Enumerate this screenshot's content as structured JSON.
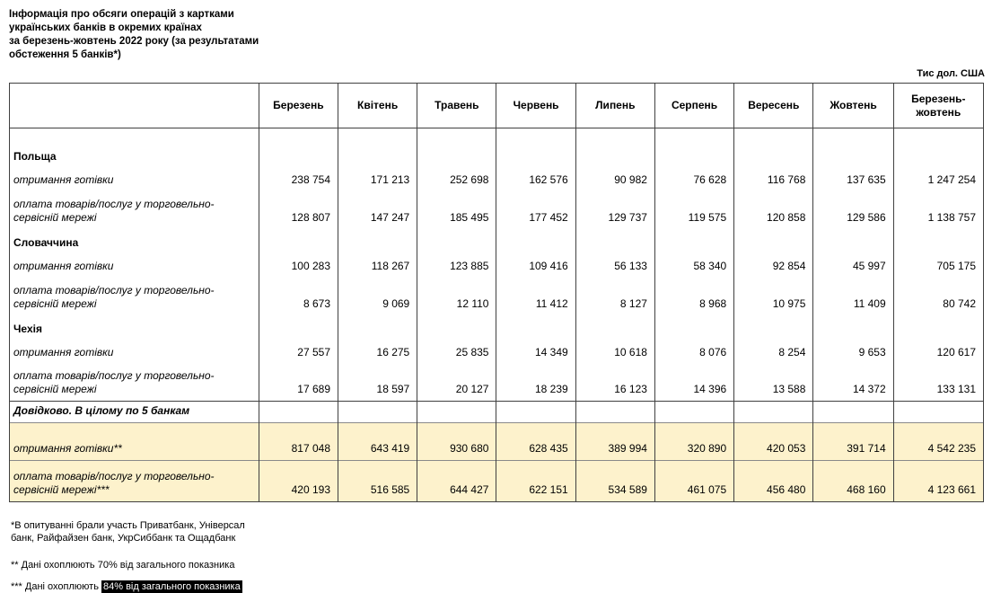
{
  "page": {
    "title": "Інформація про обсяги операцій з картками\nукраїнських банків в окремих країнах\nза березень-жовтень 2022 року (за результатами\nобстеження 5 банків*)",
    "units_label": "Тис дол. США"
  },
  "table": {
    "columns": [
      "Березень",
      "Квітень",
      "Травень",
      "Червень",
      "Липень",
      "Серпень",
      "Вересень",
      "Жовтень",
      "Березень-жовтень"
    ],
    "rows": [
      {
        "type": "spacer",
        "label": "",
        "values": []
      },
      {
        "type": "group",
        "label": "Польща",
        "values": []
      },
      {
        "type": "data",
        "label": "отримання готівки",
        "values": [
          "238 754",
          "171 213",
          "252 698",
          "162 576",
          "90 982",
          "76 628",
          "116 768",
          "137 635",
          "1 247 254"
        ]
      },
      {
        "type": "data2",
        "label": "оплата товарів/послуг у торговельно-сервісній мережі",
        "values": [
          "128 807",
          "147 247",
          "185 495",
          "177 452",
          "129 737",
          "119 575",
          "120 858",
          "129 586",
          "1 138 757"
        ]
      },
      {
        "type": "group",
        "label": "Словаччина",
        "values": []
      },
      {
        "type": "data",
        "label": "отримання готівки",
        "values": [
          "100 283",
          "118 267",
          "123 885",
          "109 416",
          "56 133",
          "58 340",
          "92 854",
          "45 997",
          "705 175"
        ]
      },
      {
        "type": "data2",
        "label": "оплата товарів/послуг у торговельно-сервісній мережі",
        "values": [
          "8 673",
          "9 069",
          "12 110",
          "11 412",
          "8 127",
          "8 968",
          "10 975",
          "11 409",
          "80 742"
        ]
      },
      {
        "type": "group",
        "label": "Чехія",
        "values": []
      },
      {
        "type": "data",
        "label": "отримання готівки",
        "values": [
          "27 557",
          "16 275",
          "25 835",
          "14 349",
          "10 618",
          "8 076",
          "8 254",
          "9 653",
          "120 617"
        ]
      },
      {
        "type": "data2",
        "label": "оплата товарів/послуг у торговельно-сервісній мережі",
        "values": [
          "17 689",
          "18 597",
          "20 127",
          "18 239",
          "16 123",
          "14 396",
          "13 588",
          "14 372",
          "133 131"
        ]
      },
      {
        "type": "section",
        "label": "Довідково. В цілому по 5 банкам",
        "values": []
      },
      {
        "type": "hl",
        "label": "отримання готівки**",
        "values": [
          "817 048",
          "643 419",
          "930 680",
          "628 435",
          "389 994",
          "320 890",
          "420 053",
          "391 714",
          "4 542 235"
        ]
      },
      {
        "type": "hl2",
        "label": "оплата товарів/послуг у торговельно-сервісній мережі***",
        "values": [
          "420 193",
          "516 585",
          "644 427",
          "622 151",
          "534 589",
          "461 075",
          "456 480",
          "468 160",
          "4 123 661"
        ]
      }
    ]
  },
  "footnotes": {
    "participants": "*В опитуванні брали участь Приватбанк, Універсал\nбанк, Райфайзен банк, УкрСиббанк та Ощадбанк",
    "cash_coverage": "** Дані охоплюють 70% від загального показника",
    "pos_coverage_prefix": "*** Дані охоплюють ",
    "pos_coverage_highlight": "84% від загального показника"
  },
  "colors": {
    "highlight_row": "#FDF2CC",
    "selection_bg": "#000000",
    "selection_text": "#FFFFFF"
  }
}
